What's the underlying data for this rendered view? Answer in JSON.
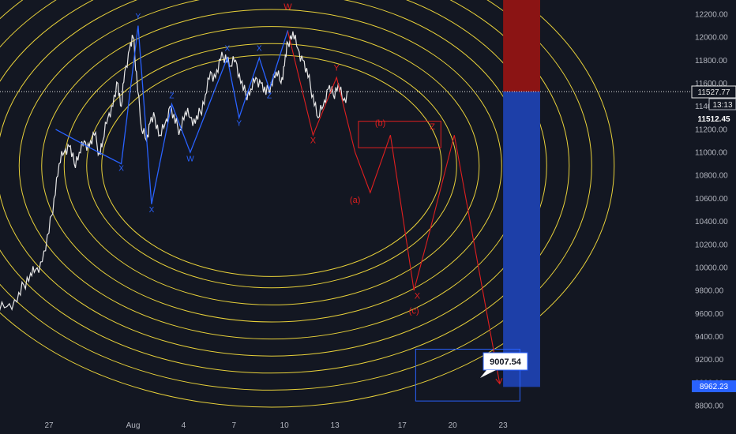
{
  "chart_data": {
    "type": "line",
    "title": "",
    "xlabel": "",
    "ylabel": "",
    "ylim": [
      8720,
      12320
    ],
    "y_ticks": [
      12200,
      12000,
      11800,
      11600,
      11400,
      11200,
      11000,
      10800,
      10600,
      10400,
      10200,
      10000,
      9800,
      9600,
      9400,
      9200,
      9000,
      8800
    ],
    "y_tick_labels": [
      "12200.00",
      "12000.00",
      "11800.00",
      "11600.00",
      "11400.00",
      "11200.00",
      "11000.00",
      "10800.00",
      "10600.00",
      "10400.00",
      "10200.00",
      "10000.00",
      "9800.00",
      "9600.00",
      "9400.00",
      "9200.00",
      "9000.00",
      "8800.00"
    ],
    "x_ticks": [
      {
        "label": "27",
        "day": 27
      },
      {
        "label": "Aug",
        "day": 32
      },
      {
        "label": "4",
        "day": 35
      },
      {
        "label": "7",
        "day": 38
      },
      {
        "label": "10",
        "day": 41
      },
      {
        "label": "13",
        "day": 44
      },
      {
        "label": "17",
        "day": 48
      },
      {
        "label": "20",
        "day": 51
      },
      {
        "label": "23",
        "day": 54
      }
    ],
    "price_path": [
      [
        21.3,
        9500
      ],
      [
        22,
        9520
      ],
      [
        22.6,
        9560
      ],
      [
        23.3,
        9600
      ],
      [
        23.9,
        9620
      ],
      [
        24.5,
        9660
      ],
      [
        25.1,
        9700
      ],
      [
        25.5,
        9850
      ],
      [
        25.9,
        9950
      ],
      [
        26.2,
        9980
      ],
      [
        26.6,
        10050
      ],
      [
        27,
        10300
      ],
      [
        27.3,
        10600
      ],
      [
        27.6,
        10900
      ],
      [
        27.9,
        11000
      ],
      [
        28.2,
        11050
      ],
      [
        28.5,
        10900
      ],
      [
        28.8,
        11000
      ],
      [
        29.1,
        11100
      ],
      [
        29.4,
        11050
      ],
      [
        29.7,
        11150
      ],
      [
        30,
        11000
      ],
      [
        30.2,
        11100
      ],
      [
        30.5,
        11300
      ],
      [
        30.8,
        11400
      ],
      [
        31.1,
        11600
      ],
      [
        31.3,
        11400
      ],
      [
        31.5,
        11700
      ],
      [
        31.8,
        11900
      ],
      [
        32,
        12000
      ],
      [
        32.2,
        11700
      ],
      [
        32.5,
        11200
      ],
      [
        32.8,
        11100
      ],
      [
        33,
        11250
      ],
      [
        33.3,
        11300
      ],
      [
        33.6,
        11150
      ],
      [
        33.9,
        11250
      ],
      [
        34.2,
        11400
      ],
      [
        34.5,
        11250
      ],
      [
        34.8,
        11200
      ],
      [
        35.1,
        11350
      ],
      [
        35.4,
        11300
      ],
      [
        35.7,
        11250
      ],
      [
        36,
        11350
      ],
      [
        36.3,
        11500
      ],
      [
        36.6,
        11700
      ],
      [
        36.9,
        11650
      ],
      [
        37.2,
        11800
      ],
      [
        37.5,
        11850
      ],
      [
        37.8,
        11750
      ],
      [
        38.1,
        11800
      ],
      [
        38.4,
        11600
      ],
      [
        38.7,
        11500
      ],
      [
        39,
        11550
      ],
      [
        39.3,
        11650
      ],
      [
        39.6,
        11600
      ],
      [
        39.9,
        11500
      ],
      [
        40.2,
        11600
      ],
      [
        40.5,
        11700
      ],
      [
        40.8,
        11600
      ],
      [
        41,
        11750
      ],
      [
        41.2,
        11950
      ],
      [
        41.5,
        12050
      ],
      [
        41.8,
        11900
      ],
      [
        42.1,
        11800
      ],
      [
        42.4,
        11650
      ],
      [
        42.7,
        11500
      ],
      [
        43,
        11300
      ],
      [
        43.3,
        11400
      ],
      [
        43.6,
        11550
      ],
      [
        43.9,
        11500
      ],
      [
        44.2,
        11600
      ],
      [
        44.5,
        11450
      ],
      [
        44.8,
        11530
      ]
    ],
    "blue_wave": [
      [
        27.4,
        11200
      ],
      [
        29.3,
        11050
      ],
      [
        31.3,
        10900
      ],
      [
        32.3,
        12100
      ],
      [
        33.1,
        10550
      ],
      [
        34.3,
        11420
      ],
      [
        35.4,
        11000
      ],
      [
        37.6,
        11820
      ],
      [
        38.3,
        11300
      ],
      [
        39.5,
        11820
      ],
      [
        40.1,
        11550
      ],
      [
        41.2,
        12060
      ]
    ],
    "red_path": [
      [
        41.2,
        12050
      ],
      [
        42.7,
        11150
      ],
      [
        44.1,
        11650
      ],
      [
        45.2,
        11000
      ],
      [
        46.1,
        10650
      ],
      [
        47.3,
        11150
      ],
      [
        48.7,
        9800
      ],
      [
        49.7,
        10350
      ],
      [
        51.1,
        11150
      ],
      [
        53.8,
        8990
      ]
    ],
    "labels_blue": [
      {
        "text": "Y",
        "day": 32.3,
        "price": 12160
      },
      {
        "text": "X",
        "day": 31.3,
        "price": 10840
      },
      {
        "text": "Z",
        "day": 34.3,
        "price": 11470
      },
      {
        "text": "X",
        "day": 33.1,
        "price": 10480
      },
      {
        "text": "W",
        "day": 35.4,
        "price": 10920
      },
      {
        "text": "X",
        "day": 37.6,
        "price": 11880
      },
      {
        "text": "Y",
        "day": 38.3,
        "price": 11230
      },
      {
        "text": "X",
        "day": 39.5,
        "price": 11880
      },
      {
        "text": "Z",
        "day": 40.1,
        "price": 11470
      }
    ],
    "labels_red": [
      {
        "text": "W",
        "day": 41.2,
        "price": 12240
      },
      {
        "text": "X",
        "day": 42.7,
        "price": 11080
      },
      {
        "text": "Y",
        "day": 44.1,
        "price": 11710
      },
      {
        "text": "(a)",
        "day": 45.2,
        "price": 10560
      },
      {
        "text": "(b)",
        "day": 46.7,
        "price": 11230
      },
      {
        "text": "Z",
        "day": 49.8,
        "price": 11200
      },
      {
        "text": "X",
        "day": 48.9,
        "price": 9730
      },
      {
        "text": "(c)",
        "day": 48.7,
        "price": 9600
      }
    ],
    "red_box": {
      "day_start": 45.4,
      "day_end": 50.3,
      "price_top": 11270,
      "price_bottom": 11040
    },
    "blue_box": {
      "day_start": 48.8,
      "day_end": 55.0,
      "price_top": 9290,
      "price_bottom": 8840
    },
    "current_price": 11527.77,
    "countdown": "13:13",
    "last_price_label": "11512.45",
    "target_label": "8962.23",
    "callout_value": "9007.54",
    "position_tool": {
      "day_start": 54.0,
      "day_end": 56.2,
      "entry": 11527.77,
      "stop_top": 12320,
      "target": 8962.23
    },
    "colors": {
      "background": "#131722",
      "price": "#e8e8e8",
      "blue_wave": "#2962ff",
      "red": "#e01f1f",
      "circles": "#e8d13a",
      "stop_zone": "#8b1414",
      "profit_zone": "#1d3fa8"
    }
  }
}
